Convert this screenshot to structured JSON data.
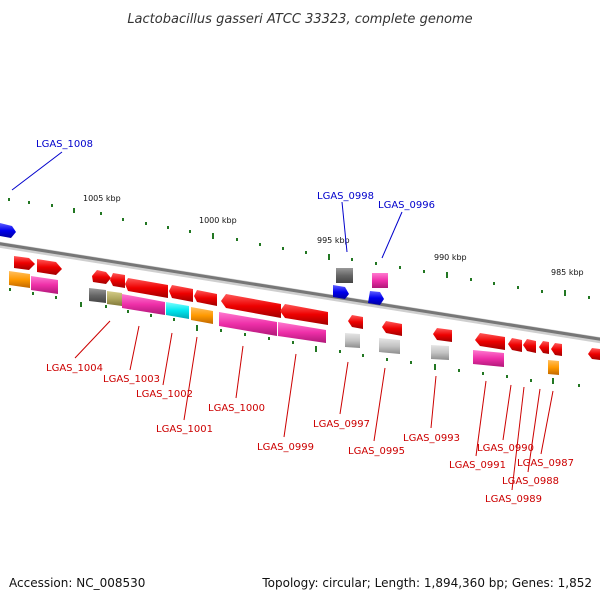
{
  "title": "Lactobacillus gasseri ATCC 33323, complete genome",
  "footer": {
    "accession": "Accession: NC_008530",
    "topology": "Topology: circular; Length: 1,894,360 bp; Genes: 1,852"
  },
  "scale_labels": [
    "1005 kbp",
    "1000 kbp",
    "995 kbp",
    "990 kbp",
    "985 kbp"
  ],
  "colors": {
    "highlight_label": "#0000cc",
    "gene_label": "#cc0000",
    "backbone": "#888888",
    "tick": "#227722"
  },
  "genes": {
    "top": [
      "LGAS_1008",
      "LGAS_0998",
      "LGAS_0996"
    ],
    "bottom": [
      "LGAS_1004",
      "LGAS_1003",
      "LGAS_1002",
      "LGAS_1001",
      "LGAS_1000",
      "LGAS_0999",
      "LGAS_0997",
      "LGAS_0995",
      "LGAS_0993",
      "LGAS_0991",
      "LGAS_0990",
      "LGAS_0989",
      "LGAS_0988",
      "LGAS_0987"
    ]
  }
}
